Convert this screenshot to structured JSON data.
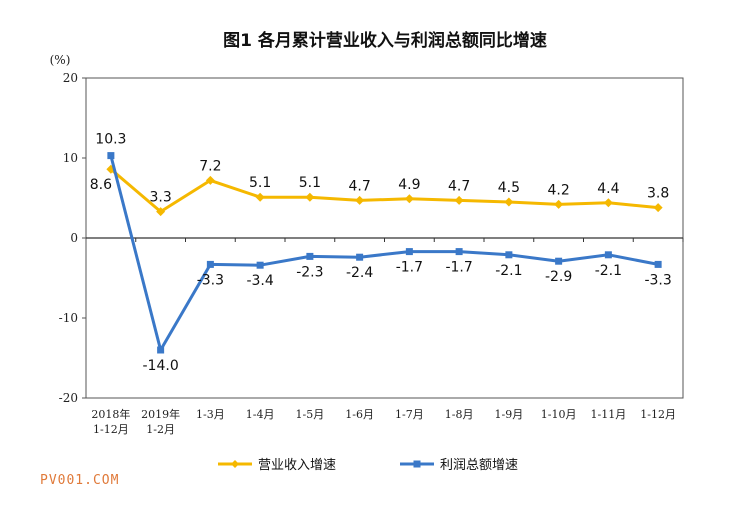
{
  "chart_data": {
    "type": "line",
    "title": "图1  各月累计营业收入与利润总额同比增速",
    "ylabel": "(%)",
    "ylim": [
      -20,
      20
    ],
    "yticks": [
      "20",
      "10",
      "0",
      "-10",
      "-20"
    ],
    "categories": [
      [
        "2018年",
        "1-12月"
      ],
      [
        "2019年",
        "1-2月"
      ],
      [
        "1-3月"
      ],
      [
        "1-4月"
      ],
      [
        "1-5月"
      ],
      [
        "1-6月"
      ],
      [
        "1-7月"
      ],
      [
        "1-8月"
      ],
      [
        "1-9月"
      ],
      [
        "1-10月"
      ],
      [
        "1-11月"
      ],
      [
        "1-12月"
      ]
    ],
    "series": [
      {
        "name": "营业收入增速",
        "color": "#f5b800",
        "values": [
          8.6,
          3.3,
          7.2,
          5.1,
          5.1,
          4.7,
          4.9,
          4.7,
          4.5,
          4.2,
          4.4,
          3.8
        ],
        "labels": [
          "8.6",
          "3.3",
          "7.2",
          "5.1",
          "5.1",
          "4.7",
          "4.9",
          "4.7",
          "4.5",
          "4.2",
          "4.4",
          "3.8"
        ]
      },
      {
        "name": "利润总额增速",
        "color": "#3a78c8",
        "values": [
          10.3,
          -14.0,
          -3.3,
          -3.4,
          -2.3,
          -2.4,
          -1.7,
          -1.7,
          -2.1,
          -2.9,
          -2.1,
          -3.3
        ],
        "labels": [
          "10.3",
          "-14.0",
          "-3.3",
          "-3.4",
          "-2.3",
          "-2.4",
          "-1.7",
          "-1.7",
          "-2.1",
          "-2.9",
          "-2.1",
          "-3.3"
        ]
      }
    ],
    "legend": "bottom",
    "grid": false
  },
  "watermark": "PV001.COM"
}
